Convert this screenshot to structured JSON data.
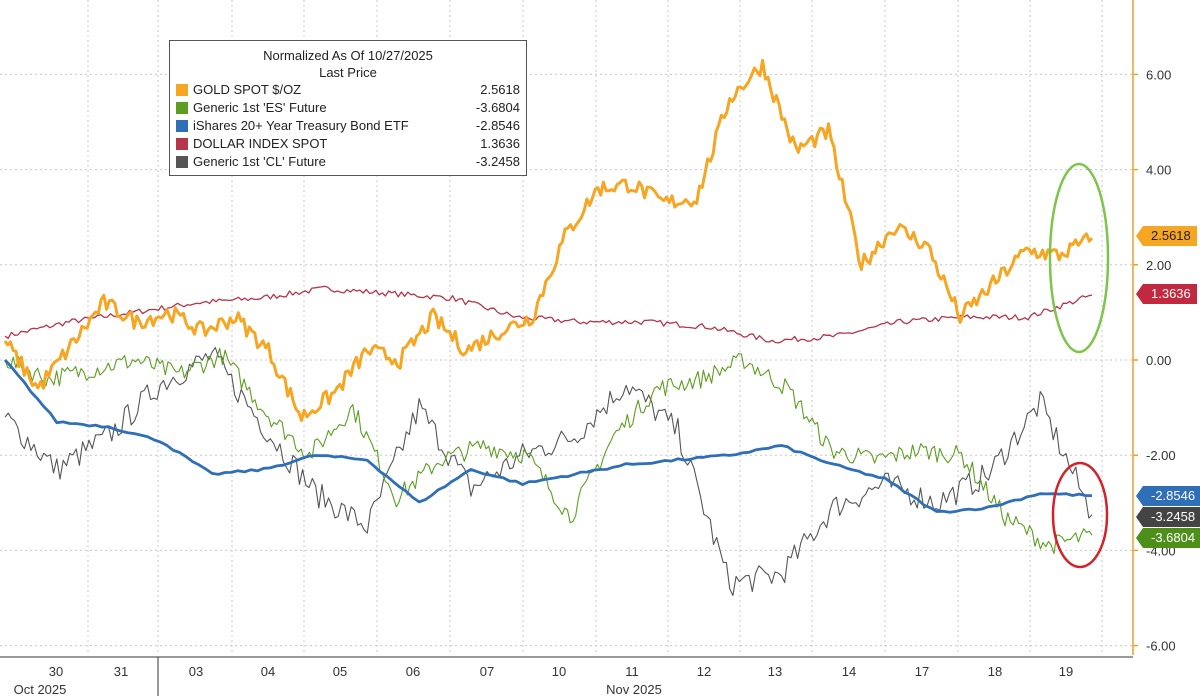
{
  "chart_data": {
    "type": "line",
    "title": "Normalized As Of 10/27/2025",
    "subtitle": "Last Price",
    "x_labels": [
      "30",
      "31",
      "03",
      "04",
      "05",
      "06",
      "07",
      "10",
      "11",
      "12",
      "13",
      "14",
      "17",
      "18",
      "19"
    ],
    "month_labels": [
      "Oct 2025",
      "Nov 2025"
    ],
    "ylim": [
      -6,
      7.5
    ],
    "y_ticks": [
      "6.00",
      "4.00",
      "2.00",
      "0.00",
      "-2.00",
      "-4.00",
      "-6.00"
    ],
    "grid": true,
    "legend_position": "top-left",
    "series": [
      {
        "name": "GOLD SPOT $/OZ",
        "last": "2.5618",
        "color": "#f5a623",
        "values": [
          0.4,
          -0.6,
          0.3,
          1.2,
          0.8,
          1.0,
          0.6,
          0.9,
          0.2,
          -1.2,
          -0.7,
          0.2,
          0.0,
          0.9,
          0.2,
          0.6,
          0.9,
          2.6,
          3.6,
          3.7,
          3.3,
          3.4,
          5.5,
          6.2,
          4.4,
          4.8,
          2.0,
          2.8,
          2.4,
          0.9,
          1.6,
          2.3,
          2.2,
          2.56
        ]
      },
      {
        "name": "Generic 1st 'ES' Future",
        "last": "-3.6804",
        "color": "#5c9e1f",
        "values": [
          0.0,
          -0.4,
          -0.2,
          0.0,
          -0.3,
          0.1,
          -1.1,
          -2.0,
          -1.0,
          -2.9,
          -2.1,
          -1.8,
          -2.0,
          -3.3,
          -1.6,
          -0.6,
          -0.4,
          0.0,
          -0.6,
          -1.9,
          -2.1,
          -1.9,
          -2.0,
          -3.3,
          -3.9,
          -3.68
        ]
      },
      {
        "name": "iShares 20+ Year Treasury Bond ETF",
        "last": "-2.8546",
        "color": "#2e6fb7",
        "values": [
          0.0,
          -1.3,
          -1.4,
          -1.7,
          -2.4,
          -2.3,
          -2.0,
          -2.1,
          -3.0,
          -2.3,
          -2.6,
          -2.4,
          -2.2,
          -2.1,
          -2.0,
          -1.8,
          -2.2,
          -2.5,
          -3.2,
          -3.1,
          -2.8,
          -2.85
        ]
      },
      {
        "name": "DOLLAR INDEX SPOT",
        "last": "1.3636",
        "color": "#b5354a",
        "values": [
          0.5,
          0.8,
          1.0,
          1.2,
          1.3,
          1.5,
          1.4,
          1.3,
          0.9,
          0.8,
          0.8,
          0.7,
          0.4,
          0.5,
          0.8,
          0.9,
          0.9,
          1.3636
        ]
      },
      {
        "name": "Generic 1st 'CL' Future",
        "last": "-3.2458",
        "color": "#555555",
        "values": [
          -1.2,
          -2.3,
          -1.6,
          -0.5,
          0.1,
          -1.4,
          -2.8,
          -3.5,
          -1.0,
          -2.7,
          -2.0,
          -1.6,
          -0.5,
          -1.5,
          -4.7,
          -4.5,
          -3.1,
          -2.6,
          -3.0,
          -2.4,
          -0.9,
          -3.25
        ]
      }
    ]
  }
}
